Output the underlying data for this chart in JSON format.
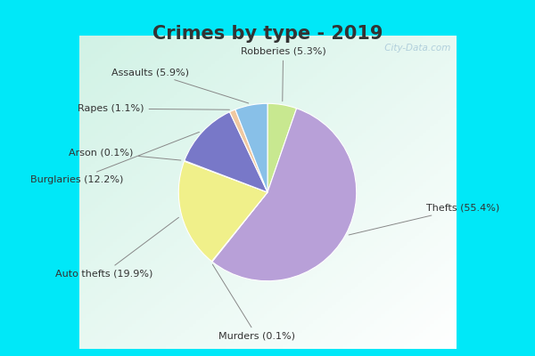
{
  "title": "Crimes by type - 2019",
  "labels": [
    "Thefts",
    "Auto thefts",
    "Burglaries",
    "Robberies",
    "Assaults",
    "Rapes",
    "Arson",
    "Murders"
  ],
  "values": [
    55.4,
    19.9,
    12.2,
    5.3,
    5.9,
    1.1,
    0.1,
    0.1
  ],
  "colors": [
    "#b8a0d8",
    "#f0f08a",
    "#7878c8",
    "#98d8f0",
    "#88c0e8",
    "#f0c8a0",
    "#f0b898",
    "#c8e890"
  ],
  "label_texts": [
    "Thefts (55.4%)",
    "Auto thefts (19.9%)",
    "Burglaries (12.2%)",
    "Robberies (5.3%)",
    "Assaults (5.9%)",
    "Rapes (1.1%)",
    "Arson (0.1%)",
    "Murders (0.1%)"
  ],
  "bg_cyan": "#00e8f8",
  "bg_inner": "#ddf0e8",
  "title_fontsize": 15,
  "title_color": "#333333",
  "watermark": " City-Data.com",
  "label_fontsize": 8,
  "connector_color": "#888888",
  "watermark_color": "#a8c8d8"
}
